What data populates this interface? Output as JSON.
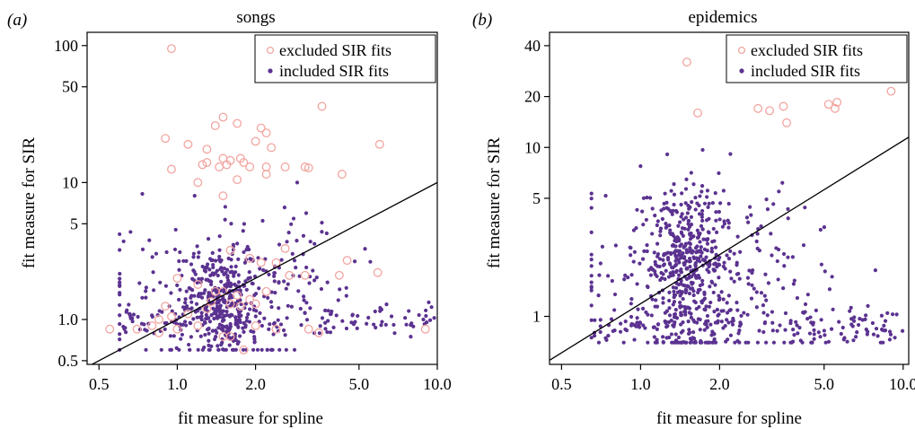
{
  "colors": {
    "excluded": "#f2a5a0",
    "included": "#5b3290",
    "axis": "#000000"
  },
  "chart_data": [
    {
      "type": "scatter",
      "panel_label": "(a)",
      "title": "songs",
      "xlabel": "fit measure for spline",
      "ylabel": "fit measure for SIR",
      "xscale": "log",
      "yscale": "log",
      "xlim": [
        0.45,
        10.0
      ],
      "ylim": [
        0.47,
        125
      ],
      "xticks": [
        0.5,
        1.0,
        2.0,
        5.0,
        10.0
      ],
      "xtick_labels": [
        "0.5",
        "1.0",
        "2.0",
        "5.0",
        "10.0"
      ],
      "yticks": [
        0.5,
        1.0,
        5,
        10,
        50,
        100
      ],
      "ytick_labels": [
        "0.5",
        "1.0",
        "5",
        "10",
        "50",
        "100"
      ],
      "grid": false,
      "legend_position": "top-right",
      "reference_line": {
        "label": "",
        "points": [
          [
            0.45,
            0.45
          ],
          [
            10.0,
            10.0
          ]
        ]
      },
      "series": [
        {
          "name": "excluded SIR fits",
          "marker": "open-circle",
          "points": [
            [
              0.95,
              95
            ],
            [
              1.5,
              30
            ],
            [
              1.7,
              27
            ],
            [
              1.4,
              26
            ],
            [
              2.1,
              25
            ],
            [
              2.2,
              23
            ],
            [
              3.6,
              36
            ],
            [
              0.9,
              21
            ],
            [
              1.1,
              19
            ],
            [
              1.3,
              17.5
            ],
            [
              2.0,
              20
            ],
            [
              2.3,
              18
            ],
            [
              6.0,
              19
            ],
            [
              1.3,
              14
            ],
            [
              1.5,
              15
            ],
            [
              1.6,
              14.5
            ],
            [
              1.75,
              15
            ],
            [
              1.8,
              14
            ],
            [
              1.9,
              13
            ],
            [
              1.45,
              13
            ],
            [
              1.55,
              13.5
            ],
            [
              1.25,
              13.5
            ],
            [
              0.95,
              12.5
            ],
            [
              2.2,
              13
            ],
            [
              2.6,
              13
            ],
            [
              3.1,
              13
            ],
            [
              3.2,
              12.8
            ],
            [
              4.3,
              11.5
            ],
            [
              1.2,
              10
            ],
            [
              1.7,
              10.5
            ],
            [
              2.2,
              11.5
            ],
            [
              1.5,
              8
            ],
            [
              1.6,
              3.2
            ],
            [
              1.9,
              2.8
            ],
            [
              2.1,
              2.6
            ],
            [
              2.4,
              2.6
            ],
            [
              2.6,
              3.3
            ],
            [
              2.7,
              2.1
            ],
            [
              3.1,
              2.1
            ],
            [
              4.2,
              2.1
            ],
            [
              5.9,
              2.2
            ],
            [
              4.5,
              2.7
            ],
            [
              1.0,
              2.0
            ],
            [
              1.2,
              1.8
            ],
            [
              1.4,
              1.6
            ],
            [
              1.5,
              1.6
            ],
            [
              1.7,
              1.5
            ],
            [
              1.9,
              1.4
            ],
            [
              2.0,
              1.3
            ],
            [
              1.6,
              1.3
            ],
            [
              1.3,
              1.2
            ],
            [
              1.1,
              1.1
            ],
            [
              0.95,
              1.05
            ],
            [
              0.85,
              1.0
            ],
            [
              0.8,
              0.9
            ],
            [
              0.7,
              0.85
            ],
            [
              0.55,
              0.85
            ],
            [
              0.85,
              0.8
            ],
            [
              1.0,
              0.85
            ],
            [
              1.2,
              0.9
            ],
            [
              1.5,
              0.75
            ],
            [
              1.6,
              0.75
            ],
            [
              1.8,
              0.6
            ],
            [
              2.0,
              0.9
            ],
            [
              2.4,
              0.85
            ],
            [
              3.5,
              0.8
            ],
            [
              3.2,
              0.85
            ],
            [
              9.0,
              0.85
            ],
            [
              0.9,
              1.25
            ],
            [
              1.35,
              1.35
            ],
            [
              1.75,
              1.25
            ],
            [
              2.2,
              1.6
            ]
          ]
        },
        {
          "name": "included SIR fits",
          "marker": "filled-dot",
          "generated": {
            "count": 640,
            "x_range": [
              0.6,
              10.0
            ],
            "y_range": [
              0.6,
              10.0
            ]
          }
        }
      ]
    },
    {
      "type": "scatter",
      "panel_label": "(b)",
      "title": "epidemics",
      "xlabel": "fit measure for spline",
      "ylabel": "fit measure for SIR",
      "xscale": "log",
      "yscale": "log",
      "xlim": [
        0.45,
        10.5
      ],
      "ylim": [
        0.52,
        48
      ],
      "xticks": [
        0.5,
        1.0,
        2.0,
        5.0,
        10.0
      ],
      "xtick_labels": [
        "0.5",
        "1.0",
        "2.0",
        "5.0",
        "10.0"
      ],
      "yticks": [
        1,
        5,
        10,
        20,
        40
      ],
      "ytick_labels": [
        "1",
        "5",
        "10",
        "20",
        "40"
      ],
      "grid": false,
      "legend_position": "top-right",
      "reference_line": {
        "label": "",
        "points": [
          [
            0.45,
            0.55
          ],
          [
            10.5,
            11.5
          ]
        ]
      },
      "series": [
        {
          "name": "excluded SIR fits",
          "marker": "open-circle",
          "points": [
            [
              1.5,
              32
            ],
            [
              1.65,
              16
            ],
            [
              2.8,
              17
            ],
            [
              3.1,
              16.5
            ],
            [
              3.5,
              17.5
            ],
            [
              3.6,
              14
            ],
            [
              5.2,
              18
            ],
            [
              5.5,
              17
            ],
            [
              5.6,
              18.5
            ],
            [
              9.0,
              21.5
            ]
          ]
        },
        {
          "name": "included SIR fits",
          "marker": "filled-dot",
          "generated": {
            "count": 820,
            "x_range": [
              0.65,
              10.0
            ],
            "y_range": [
              0.7,
              10.5
            ]
          }
        }
      ]
    }
  ]
}
